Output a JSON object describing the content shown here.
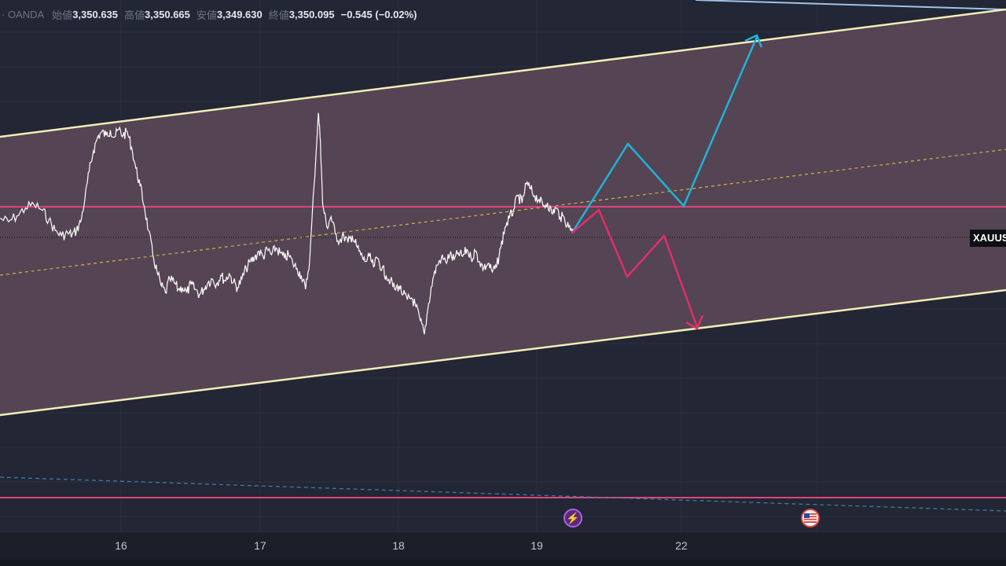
{
  "header": {
    "source": "· OANDA",
    "open_label": "始値",
    "open_value": "3,350.635",
    "high_label": "高値",
    "high_value": "3,350.665",
    "low_label": "安値",
    "low_value": "3,349.630",
    "close_label": "終値",
    "close_value": "3,350.095",
    "change": "−0.545 (−0.02%)"
  },
  "symbol_tag": "XAUUSD",
  "time_axis": {
    "labels": [
      "16",
      "17",
      "18",
      "19",
      "22"
    ]
  },
  "events": {
    "bolt_icon": "lightning-bolt-icon",
    "flag_icon": "us-flag-icon"
  },
  "colors": {
    "background": "#222635",
    "channel_fill": "#5a4756",
    "channel_line": "#f2eeb8",
    "horizontal_level": "#e0457a",
    "bull_path": "#1fb3d8",
    "bear_path": "#e02f6b",
    "price_line": "#ffffff",
    "midline": "#c9b64a",
    "dashed_teal": "#3d7f9a"
  },
  "chart_data": {
    "type": "line",
    "x_ticks": [
      "16",
      "17",
      "18",
      "19",
      "22"
    ],
    "title": "",
    "xlabel": "",
    "ylabel": "",
    "grid": true,
    "legend": "none",
    "series": [
      {
        "values": [
          [
            0,
            0.55
          ],
          [
            0.4,
            0.45
          ],
          [
            0.8,
            0.62
          ],
          [
            1.2,
            0.85
          ],
          [
            1.6,
            0.95
          ],
          [
            2.0,
            0.78
          ],
          [
            2.3,
            0.5
          ],
          [
            2.6,
            0.2
          ],
          [
            2.9,
            0.05
          ],
          [
            3.2,
            0.12
          ],
          [
            3.4,
            0.08
          ],
          [
            3.6,
            0.2
          ],
          [
            3.8,
            0.45
          ],
          [
            4.0,
            1.1
          ],
          [
            4.2,
            1.9
          ],
          [
            4.4,
            2.5
          ],
          [
            4.6,
            2.9
          ],
          [
            4.8,
            3.05
          ],
          [
            5.0,
            2.95
          ],
          [
            5.2,
            3.1
          ],
          [
            5.4,
            2.9
          ],
          [
            5.6,
            3.12
          ],
          [
            5.8,
            2.95
          ],
          [
            6.0,
            3.05
          ],
          [
            6.2,
            2.6
          ],
          [
            6.4,
            2.0
          ],
          [
            6.6,
            1.5
          ],
          [
            6.8,
            0.9
          ],
          [
            7.0,
            0.2
          ],
          [
            7.2,
            -0.5
          ],
          [
            7.4,
            -1.0
          ],
          [
            7.6,
            -1.4
          ],
          [
            7.8,
            -1.6
          ],
          [
            8.0,
            -1.2
          ],
          [
            8.2,
            -1.3
          ],
          [
            8.4,
            -1.5
          ],
          [
            8.6,
            -1.45
          ],
          [
            8.8,
            -1.6
          ],
          [
            9.0,
            -1.35
          ],
          [
            9.2,
            -1.5
          ],
          [
            9.4,
            -1.65
          ],
          [
            9.6,
            -1.5
          ],
          [
            9.8,
            -1.3
          ],
          [
            10.0,
            -1.2
          ],
          [
            10.2,
            -1.35
          ],
          [
            10.4,
            -1.1
          ],
          [
            10.6,
            -1.25
          ],
          [
            10.8,
            -1.05
          ],
          [
            11.0,
            -1.3
          ],
          [
            11.2,
            -1.45
          ],
          [
            11.4,
            -1.2
          ],
          [
            11.6,
            -0.9
          ],
          [
            11.8,
            -0.7
          ],
          [
            12.0,
            -0.6
          ],
          [
            12.2,
            -0.4
          ],
          [
            12.4,
            -0.55
          ],
          [
            12.6,
            -0.35
          ],
          [
            12.8,
            -0.5
          ],
          [
            13.0,
            -0.3
          ],
          [
            13.2,
            -0.45
          ],
          [
            13.4,
            -0.6
          ],
          [
            13.6,
            -0.5
          ],
          [
            13.8,
            -0.75
          ],
          [
            14.0,
            -0.9
          ],
          [
            14.2,
            -1.1
          ],
          [
            14.4,
            -1.5
          ],
          [
            14.6,
            -0.6
          ],
          [
            14.8,
            1.5
          ],
          [
            15.0,
            3.6
          ],
          [
            15.1,
            2.8
          ],
          [
            15.2,
            1.0
          ],
          [
            15.4,
            0.3
          ],
          [
            15.6,
            0.6
          ],
          [
            15.8,
            0.1
          ],
          [
            16.0,
            -0.1
          ],
          [
            16.2,
            0.05
          ],
          [
            16.4,
            -0.15
          ],
          [
            16.6,
            0.05
          ],
          [
            16.8,
            -0.25
          ],
          [
            17.0,
            -0.5
          ],
          [
            17.2,
            -0.7
          ],
          [
            17.4,
            -0.55
          ],
          [
            17.6,
            -0.85
          ],
          [
            17.8,
            -0.6
          ],
          [
            18.0,
            -0.9
          ],
          [
            18.2,
            -1.1
          ],
          [
            18.4,
            -1.25
          ],
          [
            18.6,
            -1.5
          ],
          [
            18.8,
            -1.4
          ],
          [
            19.0,
            -1.65
          ],
          [
            19.2,
            -1.8
          ],
          [
            19.4,
            -1.75
          ],
          [
            19.6,
            -2.0
          ],
          [
            19.8,
            -2.4
          ],
          [
            20.0,
            -2.8
          ],
          [
            20.2,
            -1.9
          ],
          [
            20.4,
            -1.2
          ],
          [
            20.6,
            -0.8
          ],
          [
            20.8,
            -0.6
          ],
          [
            21.0,
            -0.7
          ],
          [
            21.2,
            -0.5
          ],
          [
            21.4,
            -0.65
          ],
          [
            21.6,
            -0.45
          ],
          [
            21.8,
            -0.55
          ],
          [
            22.0,
            -0.35
          ],
          [
            22.2,
            -0.6
          ],
          [
            22.4,
            -0.4
          ],
          [
            22.6,
            -0.7
          ],
          [
            22.8,
            -0.9
          ],
          [
            23.0,
            -0.75
          ],
          [
            23.2,
            -1.0
          ],
          [
            23.4,
            -0.85
          ],
          [
            23.6,
            -0.3
          ],
          [
            23.8,
            0.3
          ],
          [
            24.0,
            0.55
          ],
          [
            24.2,
            0.8
          ],
          [
            24.4,
            1.2
          ],
          [
            24.6,
            1.0
          ],
          [
            24.8,
            1.55
          ],
          [
            25.0,
            1.4
          ],
          [
            25.2,
            1.2
          ],
          [
            25.4,
            1.1
          ],
          [
            25.6,
            0.9
          ],
          [
            25.8,
            1.0
          ],
          [
            26.0,
            0.7
          ],
          [
            26.2,
            0.85
          ],
          [
            26.4,
            0.6
          ],
          [
            26.6,
            0.55
          ],
          [
            26.8,
            0.3
          ],
          [
            27.0,
            0.25
          ]
        ]
      }
    ]
  }
}
